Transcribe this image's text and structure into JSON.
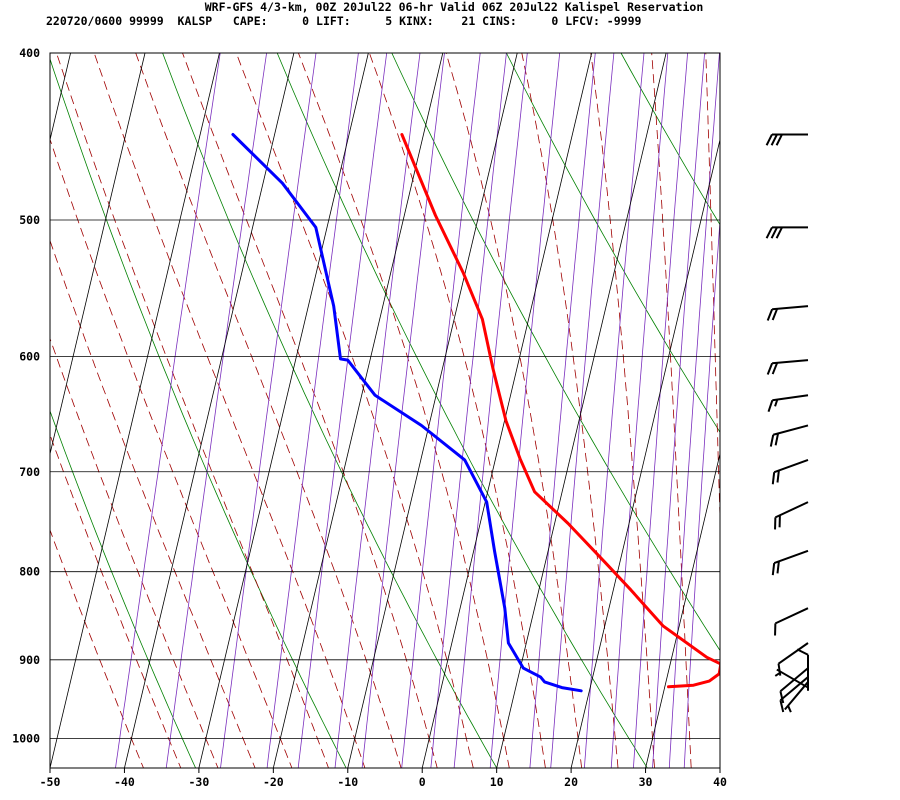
{
  "header": {
    "line1": "WRF-GFS 4/3-km, 00Z 20Jul22 06-hr Valid 06Z 20Jul22 Kalispel Reservation",
    "line2": "220720/0600 99999  KALSP   CAPE:     0 LIFT:     5 KINX:    21 CINS:     0 LFCV: -9999"
  },
  "chart_data": {
    "type": "line",
    "chart_kind": "skew-T log-P sounding",
    "x_axis": {
      "label": "",
      "ticks": [
        -50,
        -40,
        -30,
        -20,
        -10,
        0,
        10,
        20,
        30,
        40
      ],
      "range": [
        -50,
        40
      ]
    },
    "y_axis": {
      "label": "",
      "ticks": [
        400,
        500,
        600,
        700,
        800,
        900,
        1000
      ],
      "range": [
        400,
        1040
      ],
      "scale": "log"
    },
    "grid": true,
    "background_lines": [
      "dry adiabats (green)",
      "moist adiabats (dashed dark red)",
      "mixing ratio lines (purple)"
    ],
    "series": [
      {
        "color": "#ff0000",
        "role": "temperature",
        "points": [
          [
            30.5,
            933
          ],
          [
            33.8,
            931
          ],
          [
            35.8,
            926
          ],
          [
            36.9,
            917
          ],
          [
            36.8,
            905
          ],
          [
            34.7,
            897
          ],
          [
            27.8,
            860
          ],
          [
            22.4,
            820
          ],
          [
            18.0,
            790
          ],
          [
            11.8,
            750
          ],
          [
            6.3,
            719
          ],
          [
            3.3,
            688
          ],
          [
            0.2,
            654
          ],
          [
            -3.2,
            610
          ],
          [
            -6.2,
            571
          ],
          [
            -10.2,
            537
          ],
          [
            -15.8,
            497
          ],
          [
            -22.9,
            446
          ]
        ]
      },
      {
        "color": "#0000ff",
        "role": "dewpoint",
        "points": [
          [
            18.9,
            938
          ],
          [
            16.2,
            934
          ],
          [
            13.7,
            927
          ],
          [
            13.0,
            921
          ],
          [
            10.4,
            910
          ],
          [
            7.6,
            880
          ],
          [
            6.0,
            840
          ],
          [
            2.8,
            778
          ],
          [
            0.2,
            729
          ],
          [
            -4.1,
            689
          ],
          [
            -11.0,
            658
          ],
          [
            -18.2,
            632
          ],
          [
            -23.0,
            603
          ],
          [
            -24.0,
            602
          ],
          [
            -26.6,
            561
          ],
          [
            -31.5,
            505
          ],
          [
            -37.4,
            476
          ],
          [
            -45.6,
            446
          ]
        ]
      }
    ],
    "wind_barbs": [
      {
        "p": 446,
        "dir": 270,
        "kt": 30
      },
      {
        "p": 505,
        "dir": 270,
        "kt": 30
      },
      {
        "p": 561,
        "dir": 265,
        "kt": 20
      },
      {
        "p": 603,
        "dir": 265,
        "kt": 20
      },
      {
        "p": 632,
        "dir": 262,
        "kt": 15
      },
      {
        "p": 658,
        "dir": 255,
        "kt": 20
      },
      {
        "p": 689,
        "dir": 250,
        "kt": 20
      },
      {
        "p": 729,
        "dir": 245,
        "kt": 20
      },
      {
        "p": 778,
        "dir": 250,
        "kt": 20
      },
      {
        "p": 840,
        "dir": 245,
        "kt": 10
      },
      {
        "p": 880,
        "dir": 235,
        "kt": 10
      },
      {
        "p": 910,
        "dir": 230,
        "kt": 10
      },
      {
        "p": 921,
        "dir": 230,
        "kt": 10
      },
      {
        "p": 927,
        "dir": 220,
        "kt": 5
      },
      {
        "p": 934,
        "dir": 300,
        "kt": 5
      },
      {
        "p": 938,
        "dir": 0,
        "kt": 10
      }
    ]
  }
}
